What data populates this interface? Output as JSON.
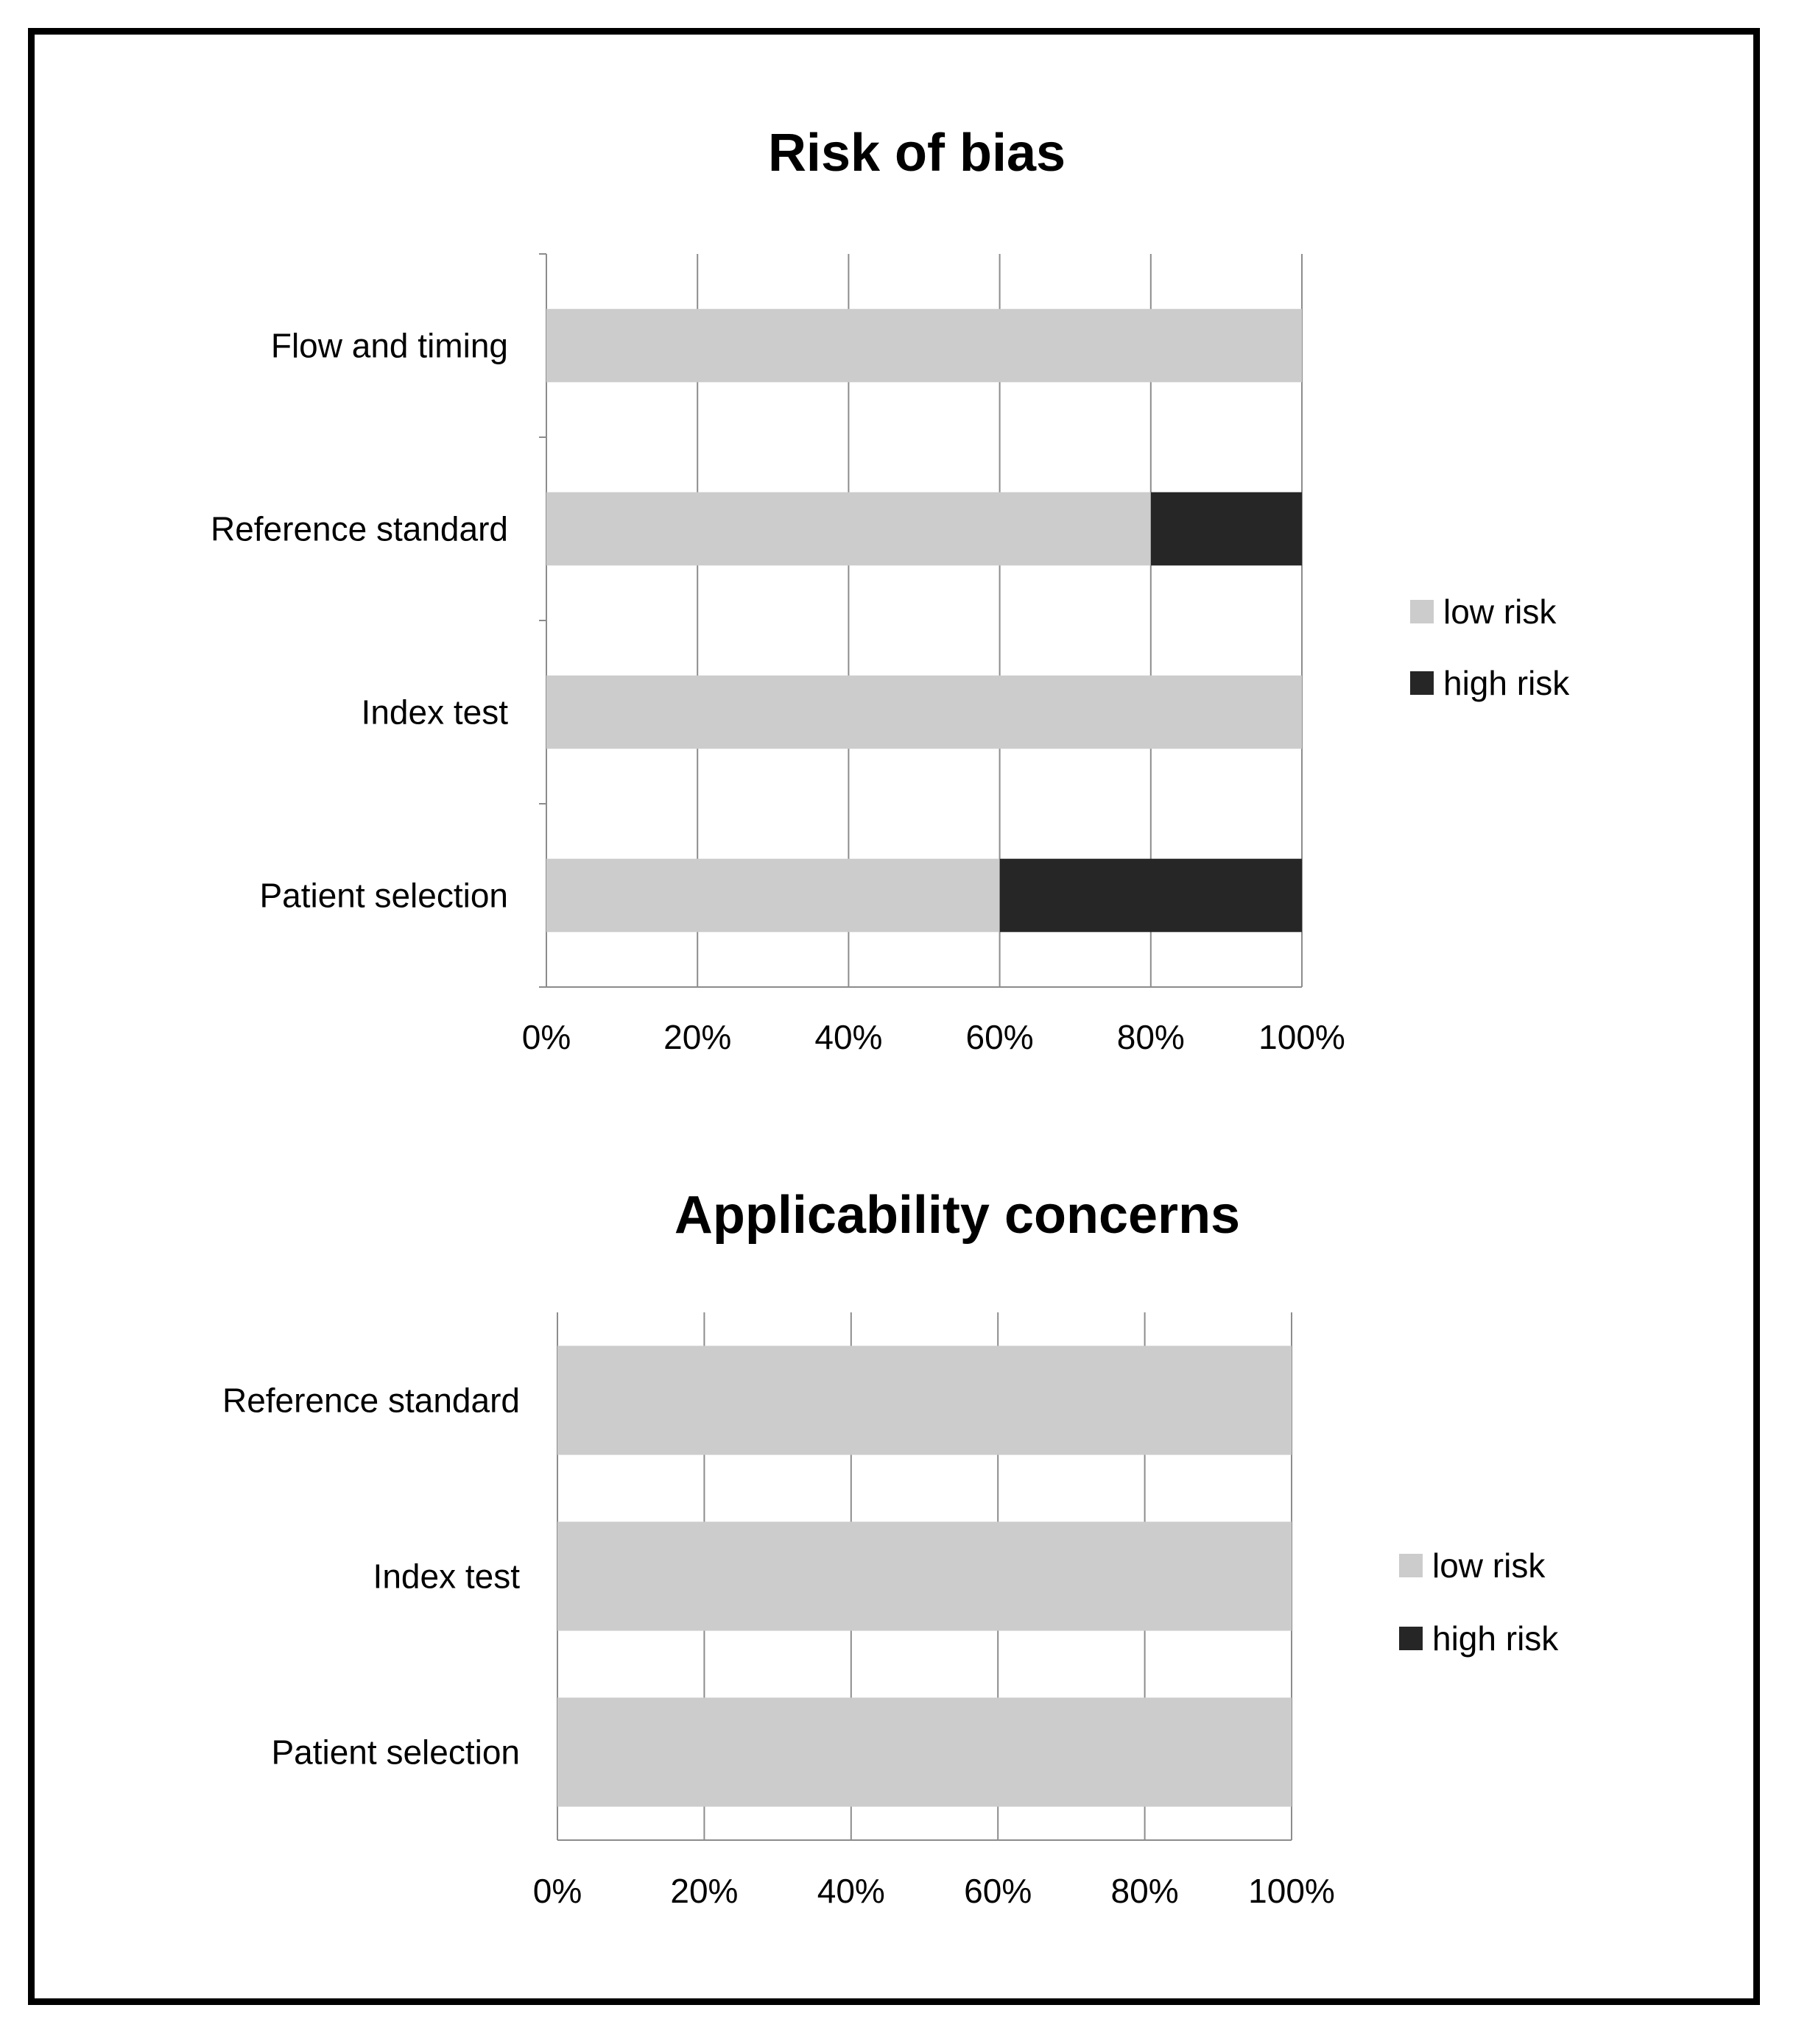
{
  "chart_data": [
    {
      "type": "bar",
      "orientation": "horizontal",
      "stacked": true,
      "title": "Risk of bias",
      "categories": [
        "Flow and timing",
        "Reference standard",
        "Index test",
        "Patient selection"
      ],
      "series": [
        {
          "name": "low risk",
          "color": "#cccccc",
          "values": [
            100,
            80,
            100,
            60
          ]
        },
        {
          "name": "high risk",
          "color": "#262626",
          "values": [
            0,
            20,
            0,
            40
          ]
        }
      ],
      "xlim": [
        0,
        100
      ],
      "xticks": [
        "0%",
        "20%",
        "40%",
        "60%",
        "80%",
        "100%"
      ],
      "grid": true,
      "legend": "right"
    },
    {
      "type": "bar",
      "orientation": "horizontal",
      "stacked": true,
      "title": "Applicability concerns",
      "categories": [
        "Reference standard",
        "Index test",
        "Patient selection"
      ],
      "series": [
        {
          "name": "low risk",
          "color": "#cccccc",
          "values": [
            100,
            100,
            100
          ]
        },
        {
          "name": "high risk",
          "color": "#262626",
          "values": [
            0,
            0,
            0
          ]
        }
      ],
      "xlim": [
        0,
        100
      ],
      "xticks": [
        "0%",
        "20%",
        "40%",
        "60%",
        "80%",
        "100%"
      ],
      "grid": true,
      "legend": "right"
    }
  ]
}
